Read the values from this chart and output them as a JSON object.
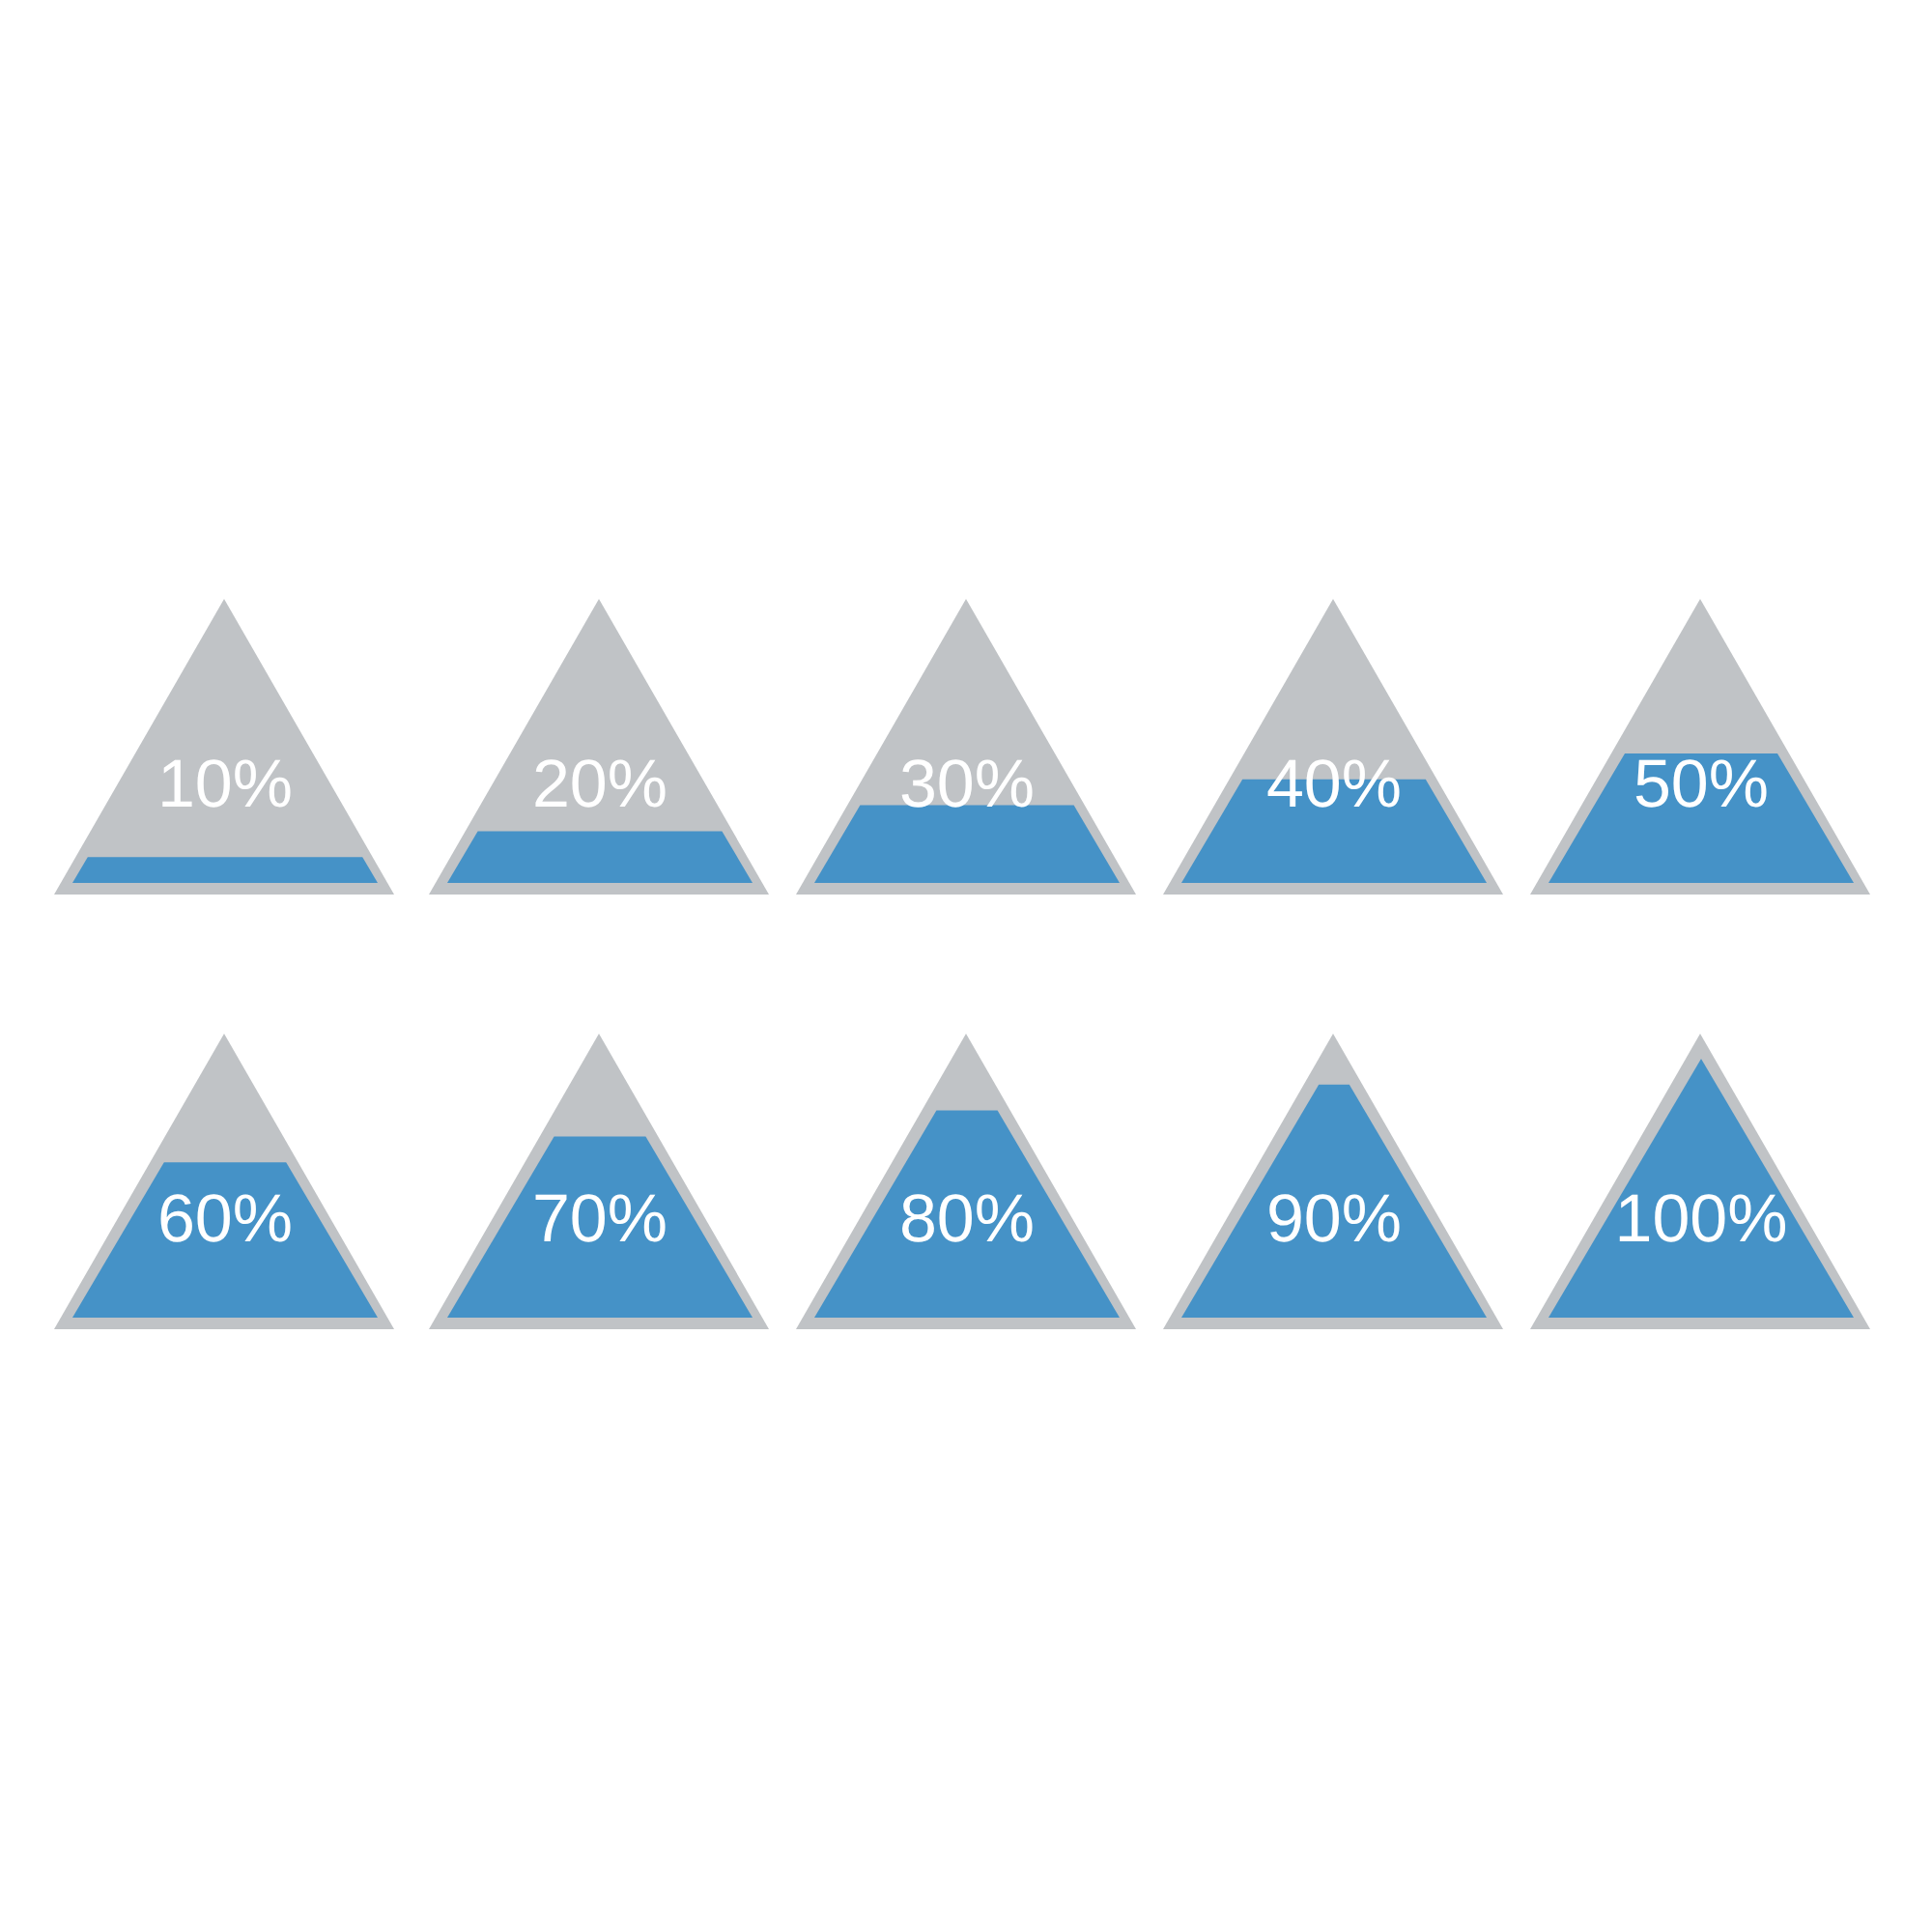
{
  "chart_data": [
    {
      "type": "other",
      "values": [
        10
      ],
      "value_labels": [
        "10%"
      ],
      "color": "#4592c7"
    },
    {
      "type": "other",
      "values": [
        20
      ],
      "value_labels": [
        "20%"
      ],
      "color": "#4592c7"
    },
    {
      "type": "other",
      "values": [
        30
      ],
      "value_labels": [
        "30%"
      ],
      "color": "#4592c7"
    },
    {
      "type": "other",
      "values": [
        40
      ],
      "value_labels": [
        "40%"
      ],
      "color": "#4592c7"
    },
    {
      "type": "other",
      "values": [
        50
      ],
      "value_labels": [
        "50%"
      ],
      "color": "#4592c7"
    },
    {
      "type": "other",
      "values": [
        60
      ],
      "value_labels": [
        "60%"
      ],
      "color": "#4592c7"
    },
    {
      "type": "other",
      "values": [
        70
      ],
      "value_labels": [
        "70%"
      ],
      "color": "#4592c7"
    },
    {
      "type": "other",
      "values": [
        80
      ],
      "value_labels": [
        "80%"
      ],
      "color": "#4592c7"
    },
    {
      "type": "other",
      "values": [
        90
      ],
      "value_labels": [
        "90%"
      ],
      "color": "#4592c7"
    },
    {
      "type": "other",
      "values": [
        100
      ],
      "value_labels": [
        "100%"
      ],
      "color": "#4592c7"
    }
  ]
}
